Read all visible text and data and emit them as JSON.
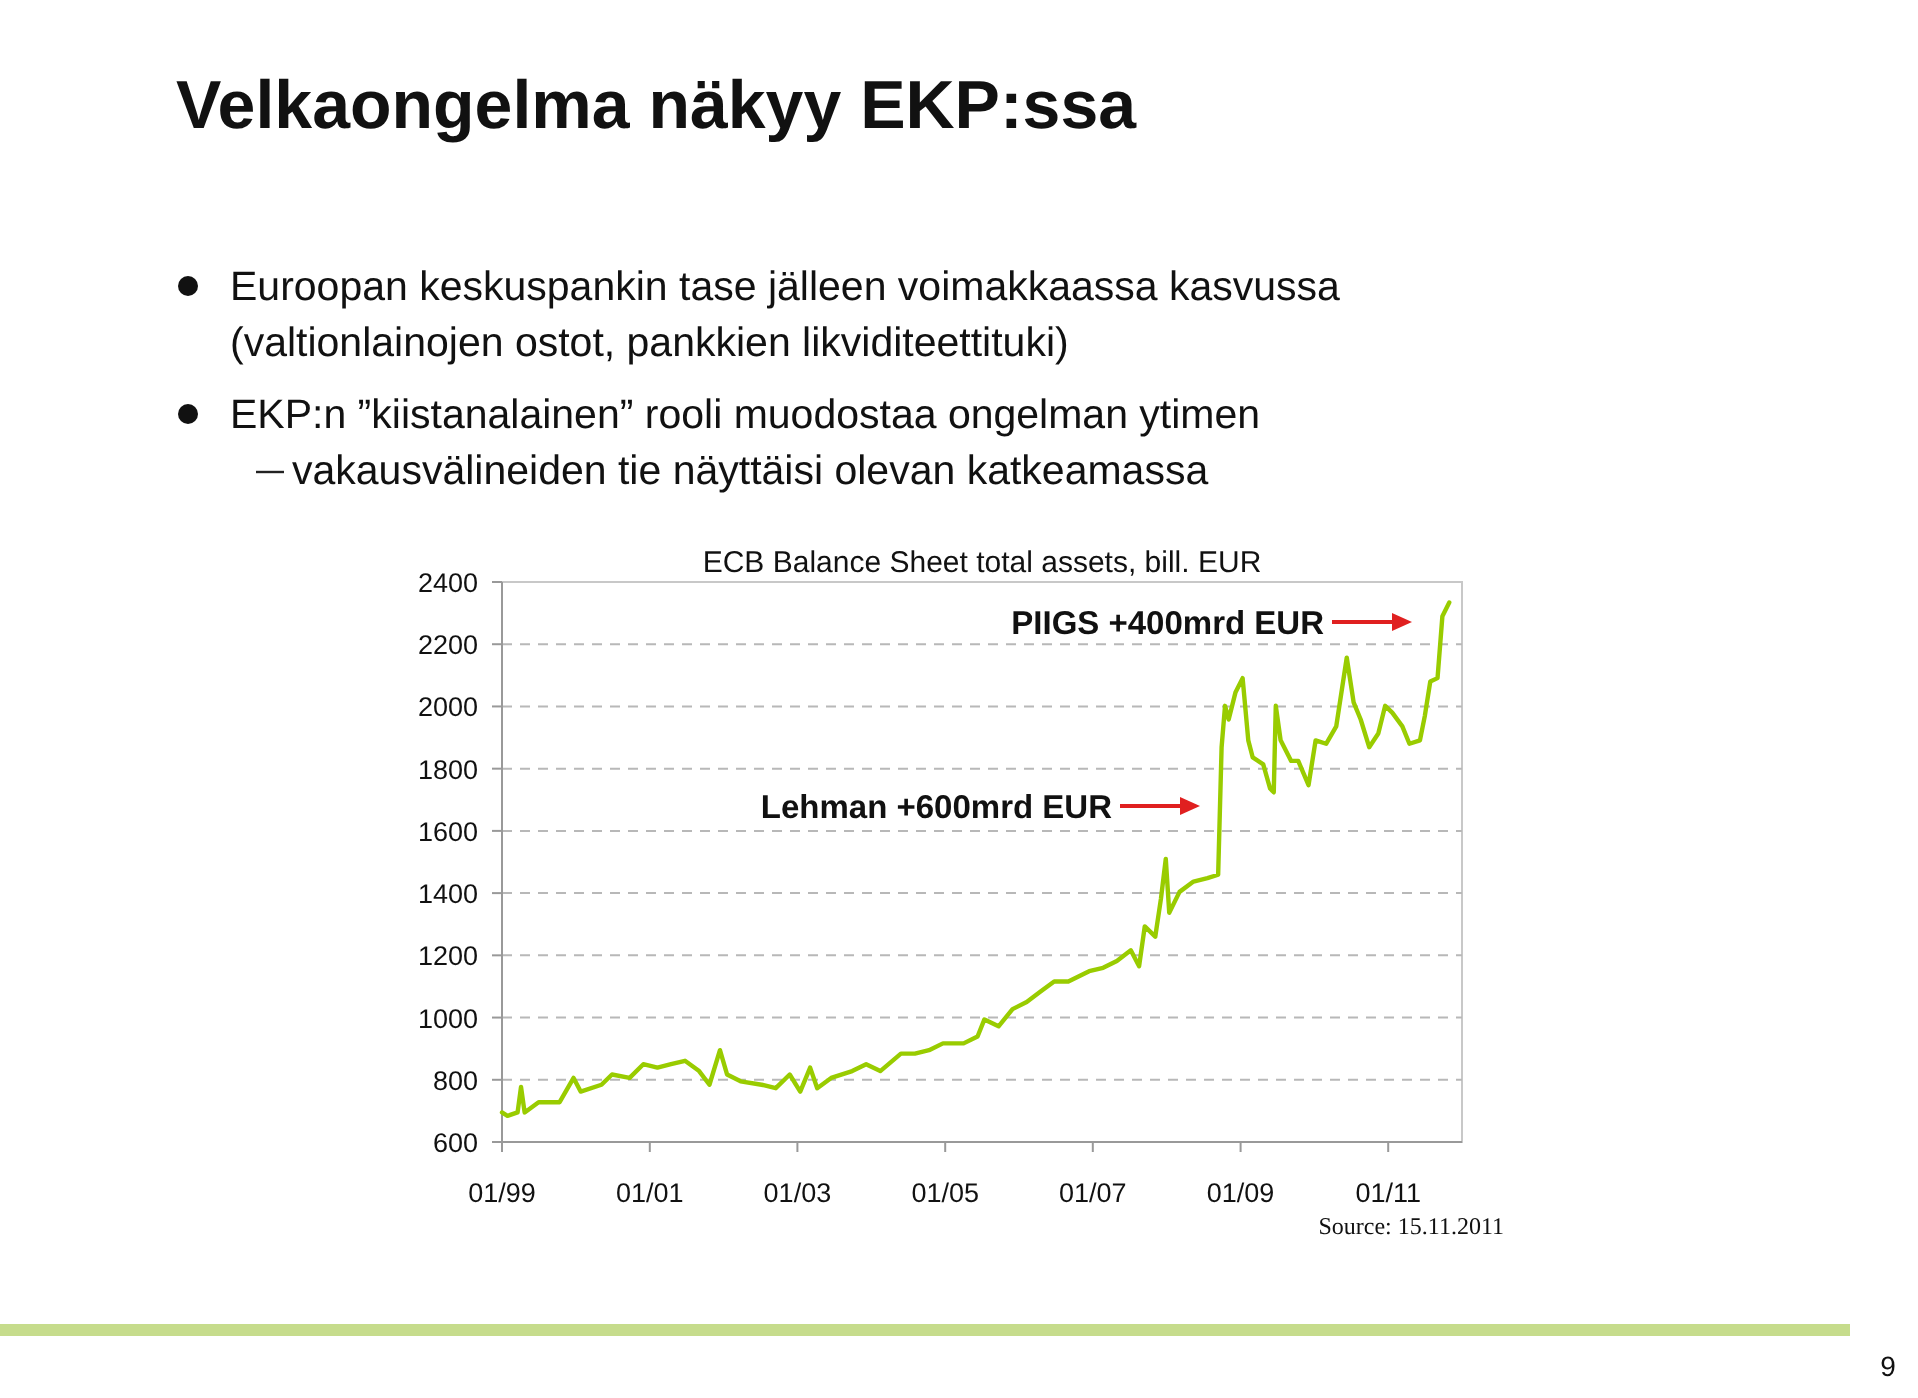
{
  "chart_data": {
    "type": "line",
    "title": "Velkaongelma näkyy EKP:ssa",
    "subtitle": "ECB Balance Sheet total assets, bill. EUR",
    "annotations": [
      "Euroopan keskuspankin tase jälleen voimakkaassa kasvussa (valtionlainojen ostot, pankkien likviditeettituki)",
      "EKP:n ”kiistanalainen” rooli muodostaa ongelman ytimen",
      "vakausvälineiden tie näyttäisi olevan katkeamassa",
      "Source: 15.11.2011",
      "9",
      "Lehman +600mrd EUR",
      "PIIGS +400mrd EUR"
    ],
    "x": [
      "1999-01-01",
      "1999-01-28",
      "1999-03-19",
      "1999-04-05",
      "1999-04-23",
      "1999-07-01",
      "1999-10-13",
      "1999-12-21",
      "2000-01-25",
      "2000-05-07",
      "2000-06-28",
      "2000-09-23",
      "2000-11-30",
      "2001-02-08",
      "2001-04-16",
      "2001-06-24",
      "2001-09-02",
      "2001-10-23",
      "2001-12-14",
      "2002-01-18",
      "2002-03-26",
      "2002-07-08",
      "2002-09-16",
      "2002-11-24",
      "2003-01-15",
      "2003-03-05",
      "2003-04-09",
      "2003-06-17",
      "2003-09-29",
      "2003-12-07",
      "2004-02-15",
      "2004-05-27",
      "2004-08-04",
      "2004-10-13",
      "2004-12-21",
      "2005-04-02",
      "2005-06-10",
      "2005-07-14",
      "2005-09-22",
      "2005-11-30",
      "2006-02-08",
      "2006-04-16",
      "2006-06-24",
      "2006-09-02",
      "2006-12-14",
      "2007-02-21",
      "2007-04-30",
      "2007-07-08",
      "2007-08-18",
      "2007-09-15",
      "2007-11-06",
      "2007-12-04",
      "2007-12-28",
      "2008-01-14",
      "2008-03-05",
      "2008-05-13",
      "2008-07-21",
      "2008-09-12",
      "2008-09-29",
      "2008-10-16",
      "2008-11-03",
      "2008-12-07",
      "2009-01-11",
      "2009-02-08",
      "2009-03-02",
      "2009-04-23",
      "2009-05-27",
      "2009-06-14",
      "2009-06-24",
      "2009-07-18",
      "2009-09-08",
      "2009-10-13",
      "2009-12-03",
      "2010-01-07",
      "2010-02-28",
      "2010-04-19",
      "2010-06-10",
      "2010-07-14",
      "2010-08-18",
      "2010-09-29",
      "2010-11-13",
      "2010-12-17",
      "2011-01-21",
      "2011-03-12",
      "2011-04-16",
      "2011-06-07",
      "2011-07-01",
      "2011-07-28",
      "2011-09-02",
      "2011-09-26",
      "2011-10-30"
    ],
    "series": [
      {
        "color": "#99cc00",
        "values": [
          695,
          684,
          695,
          777,
          695,
          728,
          728,
          806,
          762,
          784,
          817,
          806,
          850,
          839,
          850,
          861,
          828,
          784,
          895,
          817,
          795,
          784,
          773,
          817,
          762,
          839,
          773,
          806,
          828,
          850,
          828,
          884,
          884,
          895,
          917,
          917,
          939,
          994,
          972,
          1027,
          1050,
          1083,
          1116,
          1116,
          1149,
          1160,
          1182,
          1216,
          1165,
          1293,
          1260,
          1382,
          1510,
          1337,
          1404,
          1437,
          1448,
          1459,
          1869,
          2002,
          1958,
          2046,
          2091,
          1891,
          1836,
          1814,
          1736,
          1724,
          2002,
          1891,
          1825,
          1825,
          1747,
          1891,
          1880,
          1936,
          2157,
          2013,
          1958,
          1869,
          1913,
          2002,
          1980,
          1936,
          1880,
          1891,
          1969,
          2080,
          2091,
          2290,
          2334
        ]
      }
    ],
    "xlim": [
      "1999-01-01",
      "2012-01-01"
    ],
    "xticks": [
      {
        "value": "1999-01-01",
        "label": "01/99"
      },
      {
        "value": "2001-01-01",
        "label": "01/01"
      },
      {
        "value": "2003-01-01",
        "label": "01/03"
      },
      {
        "value": "2005-01-01",
        "label": "01/05"
      },
      {
        "value": "2007-01-01",
        "label": "01/07"
      },
      {
        "value": "2009-01-01",
        "label": "01/09"
      },
      {
        "value": "2011-01-01",
        "label": "01/11"
      }
    ],
    "ylim": [
      600,
      2400
    ],
    "yticks": [
      600,
      800,
      1000,
      1200,
      1400,
      1600,
      1800,
      2000,
      2200,
      2400
    ],
    "grid": "y"
  }
}
